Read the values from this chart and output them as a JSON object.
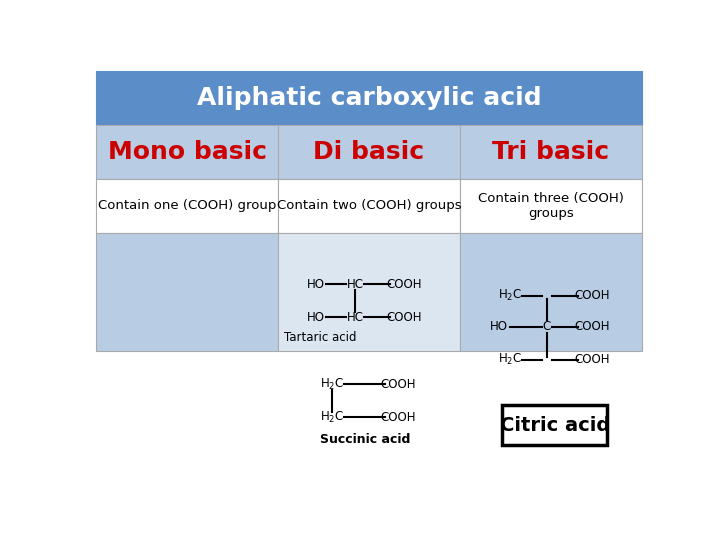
{
  "title": "Aliphatic carboxylic acid",
  "title_bg": "#5b8dc9",
  "title_color": "#ffffff",
  "title_fontsize": 18,
  "col_headers": [
    "Mono basic",
    "Di basic",
    "Tri basic"
  ],
  "col_header_color": "#cc0000",
  "col_header_fontsize": 18,
  "col_header_bg": "#b8cce4",
  "row2_texts": [
    "Contain one (COOH) group",
    "Contain two (COOH) groups",
    "Contain three (COOH)\ngroups"
  ],
  "row2_fontsize": 9.5,
  "row3_bg_left": "#b8cce4",
  "row3_bg_mid": "#dce6f1",
  "row3_bg_right": "#b8cce4",
  "tartaric_label": "Tartaric acid",
  "succinic_label": "Succinic acid",
  "citric_label": "Citric acid",
  "background_color": "#ffffff",
  "border_color": "#aaaaaa"
}
